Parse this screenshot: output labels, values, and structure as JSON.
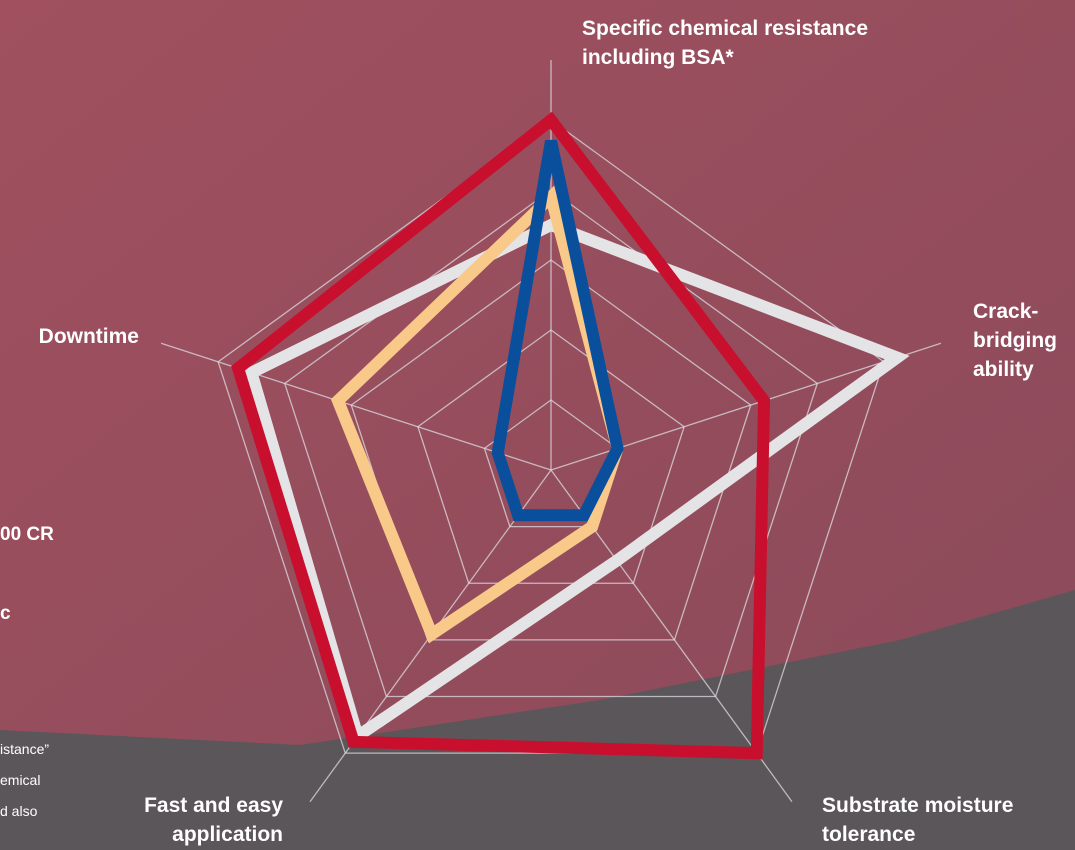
{
  "chart_data": {
    "type": "radar",
    "categories": [
      "Specific chemical resistance\nincluding BSA*",
      "Crack-\nbridging\nability",
      "Substrate moisture\ntolerance",
      "Fast and easy\napplication",
      "Downtime"
    ],
    "series": [
      {
        "color": "#e4e4e6",
        "values": [
          3.5,
          5.2,
          1.6,
          4.7,
          4.5
        ]
      },
      {
        "color": "#f9c98a",
        "values": [
          3.9,
          1.0,
          1.0,
          2.9,
          3.2
        ]
      },
      {
        "color": "#c8102e",
        "values": [
          5,
          3.2,
          5,
          4.8,
          4.7
        ]
      },
      {
        "color": "#0a4f9c",
        "values": [
          4.7,
          1.0,
          0.8,
          0.8,
          0.8
        ]
      }
    ],
    "rlim": [
      0,
      5
    ],
    "rticks": [
      1,
      2,
      3,
      4,
      5
    ],
    "grid": true,
    "cropped_texts": [
      "00 CR",
      "c",
      "istance”",
      "emical",
      "d also"
    ]
  }
}
